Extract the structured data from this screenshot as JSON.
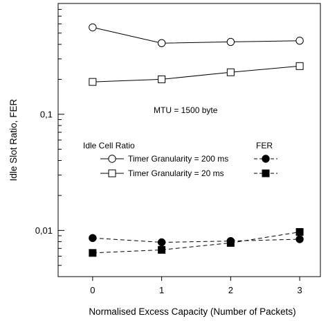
{
  "chart_data": {
    "type": "line",
    "title": "",
    "xlabel": "Normalised Excess Capacity (Number of Packets)",
    "ylabel": "Idle Slot Ratio, FER",
    "x": [
      0,
      1,
      2,
      3
    ],
    "xticks": [
      "0",
      "1",
      "2",
      "3"
    ],
    "xlim": [
      -0.5,
      3.3
    ],
    "ylim": [
      0.004,
      0.9
    ],
    "yscale": "log",
    "yticks": [
      {
        "value": 0.01,
        "label": "0,01"
      },
      {
        "value": 0.1,
        "label": "0,1"
      }
    ],
    "grid": false,
    "annotation": "MTU = 1500 byte",
    "legend": {
      "position": "center-left",
      "title_left": "Idle Cell Ratio",
      "title_right": "FER",
      "rows": [
        "Timer Granularity = 200 ms",
        "Timer Granularity = 20 ms"
      ]
    },
    "series": [
      {
        "id": "icr200",
        "group": "Idle Cell Ratio",
        "legend_row": 0,
        "marker": "circle-open",
        "dash": false,
        "values": [
          0.56,
          0.41,
          0.42,
          0.43
        ]
      },
      {
        "id": "icr20",
        "group": "Idle Cell Ratio",
        "legend_row": 1,
        "marker": "square-open",
        "dash": false,
        "values": [
          0.19,
          0.2,
          0.23,
          0.26
        ]
      },
      {
        "id": "fer200",
        "group": "FER",
        "legend_row": 0,
        "marker": "circle-filled",
        "dash": true,
        "values": [
          0.0086,
          0.0079,
          0.0081,
          0.0084
        ]
      },
      {
        "id": "fer20",
        "group": "FER",
        "legend_row": 1,
        "marker": "square-filled",
        "dash": true,
        "values": [
          0.0064,
          0.0068,
          0.0078,
          0.0097
        ]
      }
    ]
  }
}
